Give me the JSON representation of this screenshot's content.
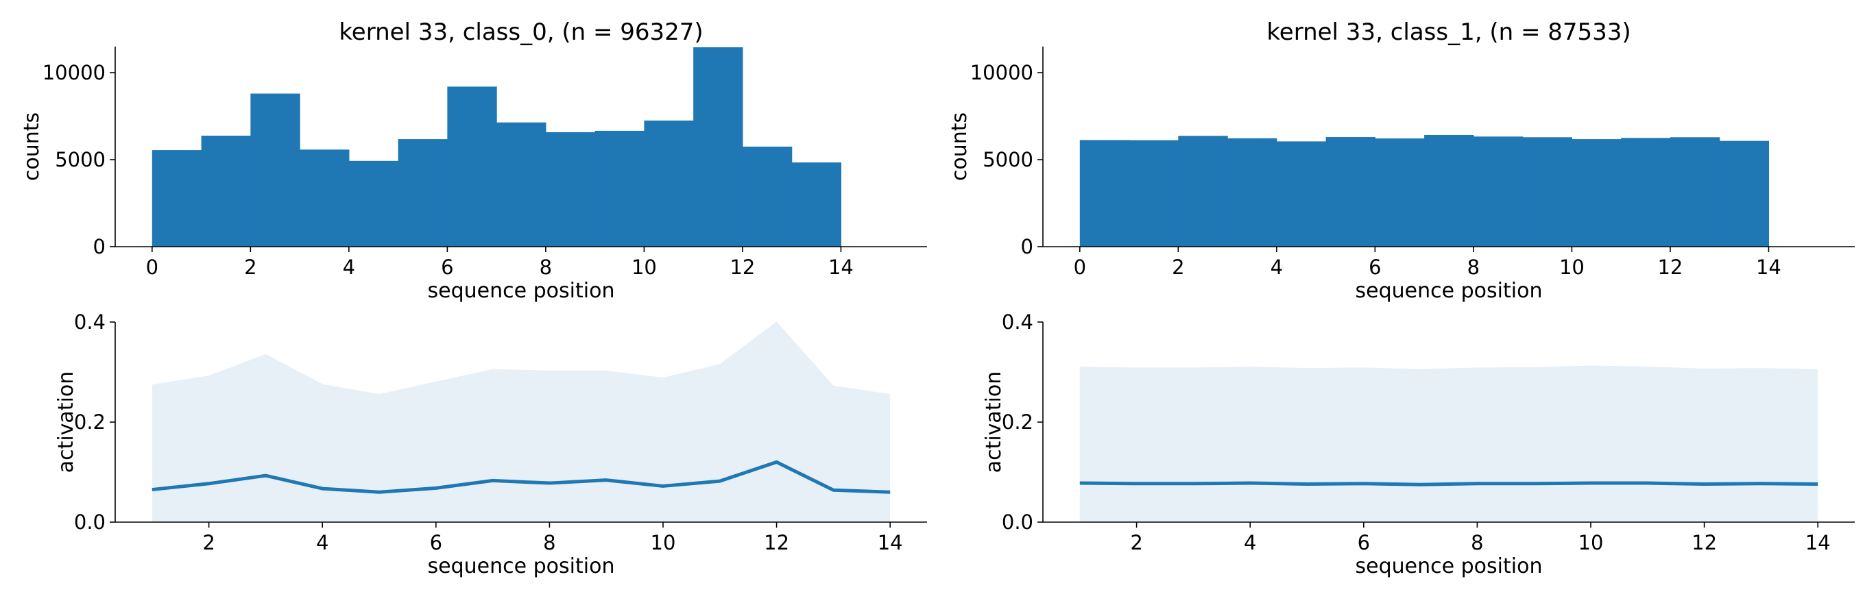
{
  "chart_data": [
    {
      "type": "bar",
      "panel": "top-left",
      "title": "kernel 33, class_0, (n = 96327)",
      "xlabel": "sequence position",
      "ylabel": "counts",
      "xlim": [
        -0.75,
        15.75
      ],
      "ylim": [
        0,
        11500
      ],
      "xticks": [
        0,
        2,
        4,
        6,
        8,
        10,
        12,
        14
      ],
      "yticks": [
        0,
        5000,
        10000
      ],
      "bin_edges": [
        0,
        1,
        2,
        3,
        4,
        5,
        6,
        7,
        8,
        9,
        10,
        11,
        12,
        13,
        14
      ],
      "values": [
        5550,
        6380,
        8800,
        5580,
        4930,
        6180,
        9200,
        7140,
        6580,
        6660,
        7250,
        11460,
        5750,
        4840
      ],
      "color": "#1f77b4",
      "grid": false
    },
    {
      "type": "bar",
      "panel": "top-right",
      "title": "kernel 33, class_1, (n = 87533)",
      "xlabel": "sequence position",
      "ylabel": "counts",
      "xlim": [
        -0.75,
        15.75
      ],
      "ylim": [
        0,
        11500
      ],
      "xticks": [
        0,
        2,
        4,
        6,
        8,
        10,
        12,
        14
      ],
      "yticks": [
        0,
        5000,
        10000
      ],
      "bin_edges": [
        0,
        1,
        2,
        3,
        4,
        5,
        6,
        7,
        8,
        9,
        10,
        11,
        12,
        13,
        14
      ],
      "values": [
        6130,
        6120,
        6370,
        6230,
        6050,
        6300,
        6220,
        6420,
        6330,
        6290,
        6180,
        6250,
        6290,
        6080
      ],
      "color": "#1f77b4",
      "grid": false
    },
    {
      "type": "area",
      "panel": "bottom-left",
      "title": "",
      "xlabel": "sequence position",
      "ylabel": "activation",
      "xlim": [
        0.35,
        14.65
      ],
      "ylim": [
        0,
        0.4
      ],
      "xticks": [
        2,
        4,
        6,
        8,
        10,
        12,
        14
      ],
      "yticks": [
        0.0,
        0.2,
        0.4
      ],
      "ytick_labels": [
        "0.0",
        "0.2",
        "0.4"
      ],
      "x": [
        1,
        2,
        3,
        4,
        5,
        6,
        7,
        8,
        9,
        10,
        11,
        12,
        13,
        14
      ],
      "band_upper": [
        0.275,
        0.293,
        0.336,
        0.276,
        0.256,
        0.281,
        0.306,
        0.303,
        0.303,
        0.289,
        0.316,
        0.401,
        0.273,
        0.256
      ],
      "values": [
        0.065,
        0.077,
        0.093,
        0.067,
        0.06,
        0.068,
        0.083,
        0.078,
        0.084,
        0.072,
        0.082,
        0.12,
        0.064,
        0.06
      ],
      "color": "#1f77b4",
      "band_color": "#e8f0f7",
      "grid": false
    },
    {
      "type": "area",
      "panel": "bottom-right",
      "title": "",
      "xlabel": "sequence position",
      "ylabel": "activation",
      "xlim": [
        0.35,
        14.65
      ],
      "ylim": [
        0,
        0.4
      ],
      "xticks": [
        2,
        4,
        6,
        8,
        10,
        12,
        14
      ],
      "yticks": [
        0.0,
        0.2,
        0.4
      ],
      "ytick_labels": [
        "0.0",
        "0.2",
        "0.4"
      ],
      "x": [
        1,
        2,
        3,
        4,
        5,
        6,
        7,
        8,
        9,
        10,
        11,
        12,
        13,
        14
      ],
      "band_upper": [
        0.311,
        0.309,
        0.309,
        0.311,
        0.308,
        0.309,
        0.306,
        0.309,
        0.31,
        0.313,
        0.311,
        0.307,
        0.308,
        0.306
      ],
      "values": [
        0.078,
        0.077,
        0.077,
        0.078,
        0.076,
        0.077,
        0.075,
        0.077,
        0.077,
        0.078,
        0.078,
        0.076,
        0.077,
        0.076
      ],
      "color": "#1f77b4",
      "band_color": "#e8f0f7",
      "grid": false
    }
  ]
}
